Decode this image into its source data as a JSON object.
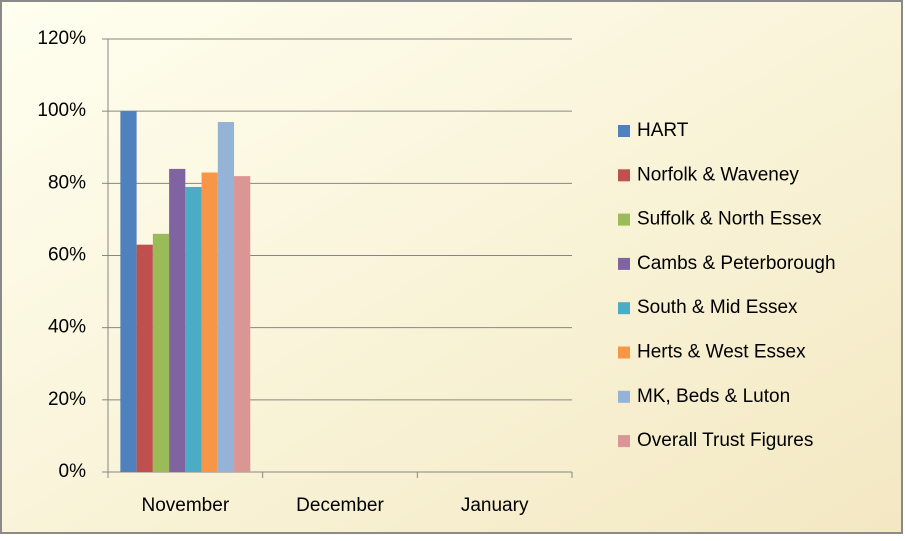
{
  "chart_data": {
    "type": "bar",
    "categories": [
      "November",
      "December",
      "January"
    ],
    "series": [
      {
        "name": "HART",
        "color": "#4f81bd",
        "values": [
          100,
          null,
          null
        ]
      },
      {
        "name": "Norfolk & Waveney",
        "color": "#c0504d",
        "values": [
          63,
          null,
          null
        ]
      },
      {
        "name": "Suffolk & North Essex",
        "color": "#9bbb59",
        "values": [
          66,
          null,
          null
        ]
      },
      {
        "name": "Cambs & Peterborough",
        "color": "#8064a2",
        "values": [
          84,
          null,
          null
        ]
      },
      {
        "name": "South & Mid Essex",
        "color": "#4bacc6",
        "values": [
          79,
          null,
          null
        ]
      },
      {
        "name": "Herts & West Essex",
        "color": "#f79646",
        "values": [
          83,
          null,
          null
        ]
      },
      {
        "name": "MK, Beds & Luton",
        "color": "#95b3d7",
        "values": [
          97,
          null,
          null
        ]
      },
      {
        "name": "Overall Trust Figures",
        "color": "#d99694",
        "values": [
          82,
          null,
          null
        ]
      }
    ],
    "ylim": [
      0,
      120
    ],
    "yticks": [
      {
        "value": 0,
        "label": "0%"
      },
      {
        "value": 20,
        "label": "20%"
      },
      {
        "value": 40,
        "label": "40%"
      },
      {
        "value": 60,
        "label": "60%"
      },
      {
        "value": 80,
        "label": "80%"
      },
      {
        "value": 100,
        "label": "100%"
      },
      {
        "value": 120,
        "label": "120%"
      }
    ],
    "grid": true,
    "legend": "right"
  }
}
